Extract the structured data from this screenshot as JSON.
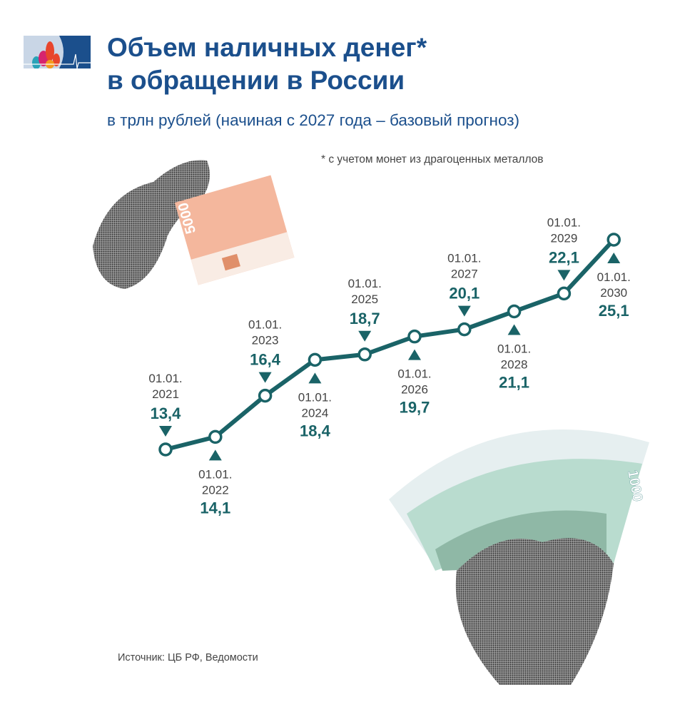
{
  "header": {
    "title_line1": "Объем наличных денег*",
    "title_line2": "в обращении в России",
    "subtitle": "в трлн рублей (начиная с 2027 года – базовый прогноз)",
    "footnote": "* с учетом монет из драгоценных металлов"
  },
  "source": "Источник: ЦБ РФ, Ведомости",
  "illustrations": {
    "banknote_top": "5000",
    "banknote_bottom": "1000"
  },
  "colors": {
    "title": "#1b4f8c",
    "line": "#1a6367",
    "label": "#444444"
  },
  "chart_data": {
    "type": "line",
    "title": "Объем наличных денег* в обращении в России",
    "ylabel": "трлн рублей",
    "date_prefix": "01.01.",
    "x": [
      "2021",
      "2022",
      "2023",
      "2024",
      "2025",
      "2026",
      "2027",
      "2028",
      "2029",
      "2030"
    ],
    "values": [
      13.4,
      14.1,
      16.4,
      18.4,
      18.7,
      19.7,
      20.1,
      21.1,
      22.1,
      25.1
    ],
    "value_labels": [
      "13,4",
      "14,1",
      "16,4",
      "18,4",
      "18,7",
      "19,7",
      "20,1",
      "21,1",
      "22,1",
      "25,1"
    ],
    "label_position": [
      "above",
      "below",
      "above",
      "below",
      "above",
      "below",
      "above",
      "below",
      "above",
      "below"
    ],
    "forecast_from": "2027",
    "grid": false
  }
}
